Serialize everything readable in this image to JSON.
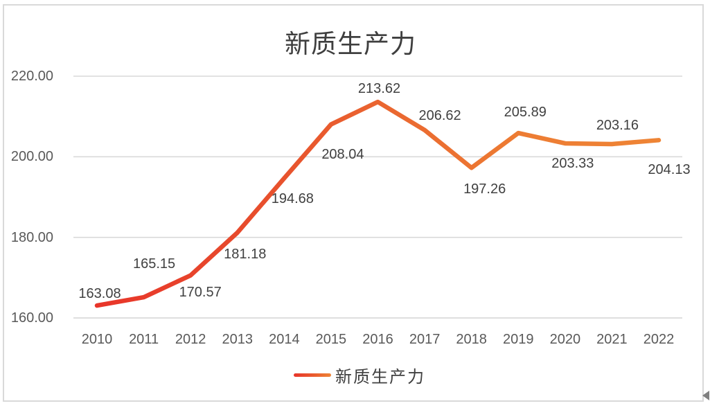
{
  "chart_data": {
    "type": "line",
    "title": "新质生产力",
    "categories": [
      "2010",
      "2011",
      "2012",
      "2013",
      "2014",
      "2015",
      "2016",
      "2017",
      "2018",
      "2019",
      "2020",
      "2021",
      "2022"
    ],
    "series": [
      {
        "name": "新质生产力",
        "values": [
          163.08,
          165.15,
          170.57,
          181.18,
          194.68,
          208.04,
          213.62,
          206.62,
          197.26,
          205.89,
          203.33,
          203.16,
          204.13
        ],
        "data_labels": [
          "163.08",
          "165.15",
          "170.57",
          "181.18",
          "194.68",
          "208.04",
          "213.62",
          "206.62",
          "197.26",
          "205.89",
          "203.33",
          "203.16",
          "204.13"
        ]
      }
    ],
    "xlabel": "",
    "ylabel": "",
    "ylim": [
      160,
      220
    ],
    "yticks": [
      {
        "value": 220,
        "label": "220.00"
      },
      {
        "value": 200,
        "label": "200.00"
      },
      {
        "value": 180,
        "label": "180.00"
      },
      {
        "value": 160,
        "label": "160.00"
      }
    ],
    "grid": true,
    "legend_position": "bottom",
    "legend_label": "新质生产力",
    "line_gradient": [
      "#E8352A",
      "#E74A2C",
      "#EA6530",
      "#ED7C33",
      "#EE8435"
    ],
    "colors": {
      "gridline": "#D9D9D9",
      "axis_line": "#D4D4D4",
      "axis_text": "#595959",
      "data_label_text": "#404040",
      "title_text": "#3F3F3F",
      "chart_border": "#D9D9D9"
    }
  }
}
